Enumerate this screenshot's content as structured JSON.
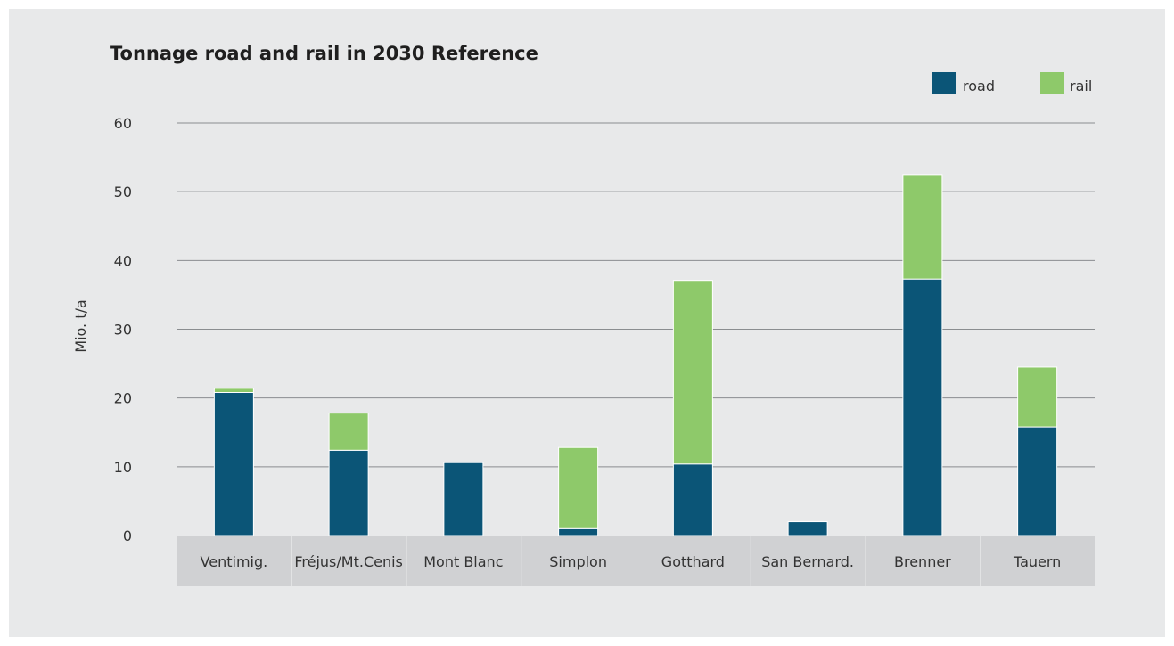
{
  "chart_data": {
    "type": "bar",
    "stacked": true,
    "title": "Tonnage road and rail in 2030 Reference",
    "xlabel": "",
    "ylabel": "Mio. t/a",
    "ylim": [
      0,
      60
    ],
    "yticks": [
      0,
      10,
      20,
      30,
      40,
      50,
      60
    ],
    "grid": true,
    "legend_position": "top-right",
    "categories": [
      "Ventimig.",
      "Fréjus/Mt.Cenis",
      "Mont Blanc",
      "Simplon",
      "Gotthard",
      "San Bernard.",
      "Brenner",
      "Tauern"
    ],
    "series": [
      {
        "name": "road",
        "color": "#0b5577",
        "values": [
          20.8,
          12.4,
          10.6,
          1.0,
          10.4,
          2.0,
          37.3,
          15.8
        ]
      },
      {
        "name": "rail",
        "color": "#8ec96a",
        "values": [
          0.6,
          5.4,
          0.0,
          11.8,
          26.7,
          0.0,
          15.2,
          8.7
        ]
      }
    ]
  },
  "colors": {
    "background": "#e8e9ea",
    "category_band": "#d0d1d3",
    "gridline": "#8a8d90"
  }
}
